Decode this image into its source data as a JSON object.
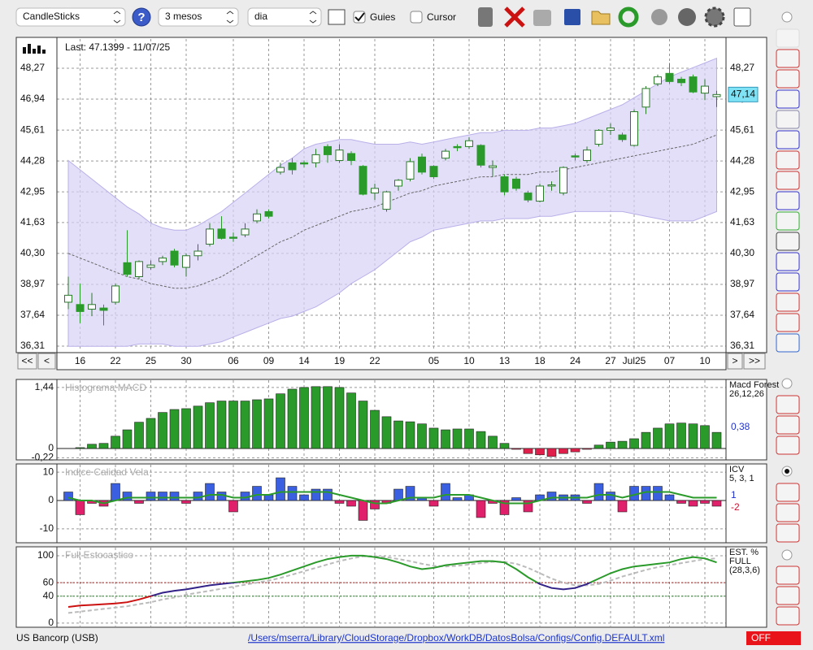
{
  "toolbar": {
    "chart_type": "CandleSticks",
    "help": "?",
    "period": "3 mesos",
    "interval": "dia",
    "guides": "Guies",
    "cursor": "Cursor"
  },
  "nav": [
    "<<",
    "<",
    ">",
    ">>"
  ],
  "chart_data": [
    {
      "type": "candlestick",
      "annotation": "Last: 47.1399 - 11/07/25",
      "categories": [
        null,
        "16",
        null,
        null,
        "22",
        null,
        null,
        "25",
        null,
        null,
        "30",
        null,
        null,
        null,
        "06",
        null,
        null,
        "09",
        null,
        null,
        "14",
        null,
        null,
        "19",
        null,
        null,
        "22",
        null,
        null,
        null,
        null,
        "05",
        null,
        null,
        "10",
        null,
        null,
        "13",
        null,
        null,
        "18",
        null,
        null,
        "24",
        null,
        null,
        "27",
        null,
        "Jul25",
        null,
        null,
        "07",
        null,
        null,
        "10",
        null
      ],
      "open": [
        38.2,
        38.1,
        37.9,
        37.95,
        38.2,
        39.9,
        39.3,
        39.7,
        39.95,
        40.4,
        39.7,
        40.2,
        40.7,
        41.35,
        41.0,
        41.1,
        41.7,
        42.1,
        43.8,
        44.2,
        44.2,
        44.2,
        44.9,
        44.3,
        44.6,
        44.05,
        42.9,
        42.2,
        43.2,
        43.5,
        44.45,
        44.05,
        44.4,
        44.9,
        44.9,
        44.95,
        44.0,
        43.6,
        43.5,
        42.9,
        42.55,
        43.2,
        42.9,
        44.5,
        44.3,
        45.0,
        45.6,
        45.4,
        44.95,
        46.6,
        47.6,
        48.05,
        47.8,
        47.9,
        47.2,
        47.05
      ],
      "high": [
        39.3,
        39.0,
        38.6,
        38.1,
        39.0,
        41.3,
        40.0,
        40.0,
        40.2,
        40.5,
        40.3,
        40.7,
        41.6,
        41.9,
        41.2,
        41.6,
        42.2,
        42.2,
        44.2,
        44.4,
        44.3,
        44.8,
        45.0,
        45.0,
        44.7,
        44.1,
        43.3,
        43.0,
        43.5,
        44.4,
        44.6,
        44.1,
        44.8,
        45.0,
        45.3,
        45.0,
        44.3,
        43.7,
        43.6,
        43.0,
        43.3,
        43.4,
        44.05,
        44.6,
        44.9,
        45.65,
        45.9,
        45.5,
        46.5,
        47.5,
        48.0,
        48.5,
        47.9,
        48.0,
        47.8,
        47.3
      ],
      "low": [
        37.9,
        37.3,
        37.6,
        37.2,
        38.1,
        39.3,
        39.2,
        39.6,
        39.8,
        39.7,
        39.3,
        40.0,
        40.6,
        40.9,
        40.8,
        41.0,
        41.6,
        41.8,
        43.7,
        43.7,
        44.0,
        44.0,
        44.2,
        44.2,
        44.1,
        42.8,
        42.6,
        42.1,
        43.0,
        43.4,
        43.7,
        43.5,
        44.3,
        44.7,
        44.8,
        44.0,
        43.6,
        42.8,
        43.0,
        42.5,
        42.5,
        43.0,
        42.8,
        44.3,
        44.2,
        44.9,
        45.4,
        45.1,
        44.9,
        46.3,
        47.5,
        47.6,
        47.5,
        47.2,
        46.9,
        46.6
      ],
      "close": [
        38.5,
        37.8,
        38.1,
        37.85,
        38.9,
        39.4,
        39.95,
        39.8,
        40.1,
        39.8,
        40.2,
        40.4,
        41.35,
        40.95,
        40.95,
        41.35,
        42.0,
        41.9,
        44.0,
        43.9,
        44.15,
        44.55,
        44.55,
        44.75,
        44.3,
        42.85,
        43.1,
        42.95,
        43.45,
        44.25,
        43.8,
        43.6,
        44.7,
        44.85,
        45.15,
        44.1,
        44.07,
        42.95,
        43.1,
        42.6,
        43.2,
        43.25,
        44.0,
        44.45,
        44.75,
        45.6,
        45.7,
        45.2,
        46.4,
        47.4,
        47.9,
        47.7,
        47.65,
        47.25,
        47.5,
        47.14
      ],
      "up_color": "#ffffff",
      "down_color": "#2a9a2a",
      "bands": {
        "color": "#d9d2f6",
        "line_color": "#666666",
        "upper": [
          44.3,
          43.9,
          43.5,
          43.1,
          42.7,
          42.3,
          42.0,
          41.6,
          41.4,
          41.3,
          41.3,
          41.5,
          41.8,
          42.1,
          42.5,
          42.9,
          43.3,
          43.7,
          44.1,
          44.4,
          44.8,
          45.0,
          45.1,
          45.2,
          45.2,
          45.1,
          45.0,
          45.0,
          45.0,
          45.1,
          45.0,
          45.1,
          45.2,
          45.3,
          45.4,
          45.5,
          45.5,
          45.6,
          45.6,
          45.6,
          45.7,
          45.7,
          45.8,
          45.9,
          46.1,
          46.3,
          46.5,
          46.7,
          47.0,
          47.3,
          47.6,
          47.9,
          48.1,
          48.3,
          48.5,
          48.7
        ],
        "lower": [
          36.3,
          36.3,
          36.3,
          36.3,
          36.3,
          36.3,
          36.4,
          36.4,
          36.4,
          36.3,
          36.3,
          36.3,
          36.4,
          36.5,
          36.7,
          36.9,
          37.1,
          37.3,
          37.5,
          37.6,
          37.8,
          38.0,
          38.3,
          38.6,
          39.0,
          39.3,
          39.6,
          40.0,
          40.4,
          40.8,
          41.0,
          41.3,
          41.4,
          41.5,
          41.6,
          41.7,
          41.7,
          41.8,
          41.8,
          41.8,
          41.9,
          41.9,
          42.0,
          42.1,
          42.1,
          42.1,
          42.1,
          42.1,
          42.0,
          41.9,
          41.8,
          41.7,
          41.7,
          41.7,
          41.9,
          42.1
        ],
        "middle": [
          40.3,
          40.1,
          39.9,
          39.7,
          39.5,
          39.3,
          39.2,
          39.0,
          38.9,
          38.8,
          38.8,
          38.9,
          39.1,
          39.3,
          39.6,
          39.9,
          40.2,
          40.5,
          40.8,
          41.0,
          41.3,
          41.5,
          41.7,
          41.9,
          42.1,
          42.2,
          42.3,
          42.5,
          42.7,
          42.9,
          43.0,
          43.2,
          43.3,
          43.4,
          43.5,
          43.6,
          43.6,
          43.7,
          43.7,
          43.7,
          43.8,
          43.8,
          43.9,
          44.0,
          44.1,
          44.2,
          44.3,
          44.4,
          44.5,
          44.6,
          44.7,
          44.8,
          44.9,
          45.0,
          45.2,
          45.4
        ]
      },
      "ylim": [
        36.1,
        49.53
      ],
      "yticks": [
        {
          "value": 48.27,
          "label": "48,27"
        },
        {
          "value": 46.94,
          "label": "46,94"
        },
        {
          "value": 45.61,
          "label": "45,61"
        },
        {
          "value": 44.28,
          "label": "44,28"
        },
        {
          "value": 42.95,
          "label": "42,95"
        },
        {
          "value": 41.63,
          "label": "41,63"
        },
        {
          "value": 40.3,
          "label": "40,30"
        },
        {
          "value": 38.97,
          "label": "38,97"
        },
        {
          "value": 37.64,
          "label": "37,64"
        },
        {
          "value": 36.31,
          "label": "36,31"
        }
      ],
      "grid": true,
      "last_price": {
        "value": 47.14,
        "label": "47,14"
      },
      "last_color": "#7fe3f5"
    },
    {
      "type": "bar",
      "title": "Histograma MACD",
      "legend": [
        "Macd Forest",
        "26,12,26"
      ],
      "values": [
        0,
        0.02,
        0.1,
        0.12,
        0.29,
        0.44,
        0.62,
        0.71,
        0.85,
        0.92,
        0.94,
        1.0,
        1.08,
        1.12,
        1.12,
        1.12,
        1.15,
        1.17,
        1.29,
        1.4,
        1.44,
        1.46,
        1.46,
        1.44,
        1.31,
        1.12,
        0.9,
        0.75,
        0.65,
        0.63,
        0.58,
        0.48,
        0.44,
        0.46,
        0.46,
        0.4,
        0.29,
        0.12,
        -0.02,
        -0.12,
        -0.15,
        -0.19,
        -0.12,
        -0.08,
        -0.02,
        0.08,
        0.15,
        0.17,
        0.23,
        0.38,
        0.48,
        0.58,
        0.6,
        0.58,
        0.54,
        0.38
      ],
      "positive_color": "#2a9a2a",
      "negative_color": "#e0204a",
      "ylim": [
        -0.25,
        1.61
      ],
      "yticks": [
        {
          "value": 1.44,
          "label": "1,44"
        },
        0,
        {
          "value": -0.22,
          "label": "-0,22"
        }
      ],
      "current": [
        {
          "value": 0.38,
          "label": "0,38"
        }
      ],
      "current_colors": [
        "#2233cc"
      ]
    },
    {
      "type": "bar",
      "title": "Indice Calidad Vela",
      "legend": [
        "ICV",
        "5, 3, 1"
      ],
      "values": [
        3,
        -5,
        -1,
        -2,
        6,
        3,
        -1,
        3,
        3,
        3,
        -1,
        3,
        6,
        3,
        -4,
        3,
        5,
        2,
        8,
        5,
        2,
        4,
        4,
        -1,
        -2,
        -7,
        -3,
        -1,
        4,
        5,
        1,
        -2,
        6,
        1,
        2,
        -6,
        -1,
        -5,
        1,
        -4,
        2,
        3,
        2,
        2,
        -1,
        6,
        3,
        -4,
        5,
        5,
        5,
        2,
        -1,
        -2,
        -1,
        -2
      ],
      "positive_color": "#3a5fe0",
      "negative_color": "#e0206a",
      "signal": {
        "color": "#2a9a2a",
        "values": [
          1,
          0,
          0,
          -1,
          0,
          1,
          1,
          1,
          1,
          1,
          1,
          1,
          2,
          2,
          1,
          1,
          2,
          2,
          3,
          3,
          3,
          3,
          3,
          2,
          1,
          0,
          -1,
          -1,
          0,
          1,
          1,
          1,
          2,
          2,
          2,
          1,
          0,
          -1,
          -1,
          -1,
          0,
          1,
          1,
          1,
          1,
          2,
          2,
          1,
          2,
          3,
          3,
          3,
          2,
          1,
          1,
          1
        ]
      },
      "ylim": [
        -14.6,
        12.6
      ],
      "yticks": [
        10,
        0,
        -10
      ],
      "current": [
        1,
        -2
      ],
      "current_colors": [
        "#2233cc",
        "#cc1133"
      ]
    },
    {
      "type": "line",
      "title": "Full Estocastico",
      "legend": [
        "EST. %",
        "FULL",
        "(28,3,6)"
      ],
      "series": [
        {
          "values": [
            24,
            26,
            27,
            28,
            29,
            31,
            35,
            40,
            45,
            48,
            50,
            53,
            56,
            58,
            60,
            62,
            64,
            67,
            72,
            78,
            84,
            90,
            95,
            98,
            100,
            100,
            98,
            95,
            90,
            84,
            80,
            82,
            86,
            88,
            90,
            92,
            92,
            90,
            80,
            68,
            58,
            52,
            50,
            52,
            58,
            66,
            74,
            80,
            84,
            86,
            88,
            90,
            95,
            98,
            96,
            90
          ]
        },
        {
          "color": "#bbbbbb",
          "values": [
            15,
            17,
            19,
            21,
            23,
            25,
            28,
            31,
            35,
            38,
            42,
            45,
            48,
            51,
            54,
            57,
            60,
            63,
            67,
            72,
            77,
            82,
            87,
            92,
            96,
            99,
            99,
            98,
            95,
            92,
            88,
            85,
            84,
            85,
            87,
            89,
            91,
            91,
            88,
            82,
            74,
            66,
            60,
            56,
            56,
            58,
            63,
            69,
            74,
            79,
            83,
            86,
            89,
            92,
            95,
            96
          ]
        }
      ],
      "levels": [
        40,
        60
      ],
      "level_colors": [
        "#2a8a2a",
        "#aa2222"
      ],
      "zone_colors": [
        "#cc1111",
        "#332288",
        "#2a9a2a"
      ],
      "ylim": [
        -5,
        112
      ],
      "yticks": [
        100,
        60,
        40,
        0
      ]
    }
  ],
  "footer": {
    "symbol": "US Bancorp (USB)",
    "path": "/Users/mserra/Library/CloudStorage/Dropbox/WorkDB/DatosBolsa/Configs/Config.DEFAULT.xml",
    "status": "OFF"
  }
}
